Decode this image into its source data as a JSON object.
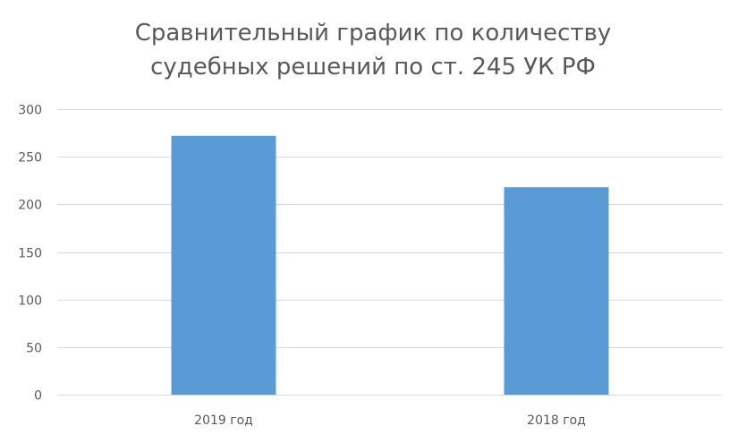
{
  "chart_data": {
    "type": "bar",
    "title_lines": [
      "Сравнительный график по количеству",
      "судебных решений по ст. 245 УК РФ"
    ],
    "categories": [
      "2019 год",
      "2018 год"
    ],
    "values": [
      272,
      218
    ],
    "ylim": [
      0,
      300
    ],
    "yticks": [
      "0",
      "50",
      "100",
      "150",
      "200",
      "250",
      "300"
    ],
    "grid": true,
    "legend": "none",
    "colors": {
      "bar": "#5b9bd5",
      "grid": "#d9d9d9",
      "text": "#595959"
    }
  }
}
